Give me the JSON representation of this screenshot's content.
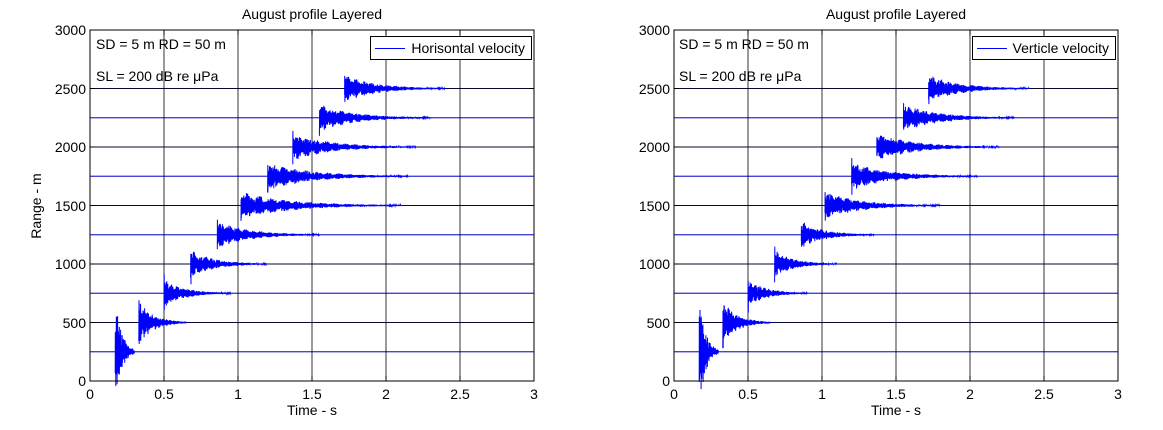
{
  "chart_data": [
    {
      "type": "line",
      "title": "August profile Layered",
      "xlabel": "Time - s",
      "ylabel": "Range - m",
      "xlim": [
        0,
        3
      ],
      "ylim": [
        0,
        3000
      ],
      "xticks": [
        "0",
        "0.5",
        "1",
        "1.5",
        "2",
        "2.5",
        "3"
      ],
      "yticks": [
        "0",
        "500",
        "1000",
        "1500",
        "2000",
        "2500",
        "3000"
      ],
      "grid": true,
      "legend_position": "top-right",
      "annotations": [
        "SD = 5 m  RD = 50 m",
        "SL = 200 dB re μPa"
      ],
      "series": [
        {
          "name": "Horisontal velocity",
          "color": "#0000ff"
        }
      ],
      "traces": [
        {
          "range": 250,
          "start": 0.17,
          "end": 0.3
        },
        {
          "range": 500,
          "start": 0.33,
          "end": 0.65
        },
        {
          "range": 750,
          "start": 0.5,
          "end": 0.95
        },
        {
          "range": 1000,
          "start": 0.68,
          "end": 1.2
        },
        {
          "range": 1250,
          "start": 0.86,
          "end": 1.55
        },
        {
          "range": 1500,
          "start": 1.02,
          "end": 2.1
        },
        {
          "range": 1750,
          "start": 1.2,
          "end": 2.15
        },
        {
          "range": 2000,
          "start": 1.37,
          "end": 2.2
        },
        {
          "range": 2250,
          "start": 1.55,
          "end": 2.3
        },
        {
          "range": 2500,
          "start": 1.72,
          "end": 2.4
        }
      ]
    },
    {
      "type": "line",
      "title": "August profile Layered",
      "xlabel": "Time - s",
      "ylabel": "",
      "xlim": [
        0,
        3
      ],
      "ylim": [
        0,
        3000
      ],
      "xticks": [
        "0",
        "0.5",
        "1",
        "1.5",
        "2",
        "2.5",
        "3"
      ],
      "yticks": [
        "0",
        "500",
        "1000",
        "1500",
        "2000",
        "2500",
        "3000"
      ],
      "grid": true,
      "legend_position": "top-right",
      "annotations": [
        "SD = 5 m  RD = 50 m",
        "SL = 200 dB re μPa"
      ],
      "series": [
        {
          "name": "Verticle velocity",
          "color": "#0000ff"
        }
      ],
      "traces": [
        {
          "range": 250,
          "start": 0.17,
          "end": 0.3
        },
        {
          "range": 500,
          "start": 0.33,
          "end": 0.65
        },
        {
          "range": 750,
          "start": 0.5,
          "end": 0.9
        },
        {
          "range": 1000,
          "start": 0.68,
          "end": 1.1
        },
        {
          "range": 1250,
          "start": 0.86,
          "end": 1.35
        },
        {
          "range": 1500,
          "start": 1.02,
          "end": 1.8
        },
        {
          "range": 1750,
          "start": 1.2,
          "end": 2.05
        },
        {
          "range": 2000,
          "start": 1.37,
          "end": 2.2
        },
        {
          "range": 2250,
          "start": 1.55,
          "end": 2.3
        },
        {
          "range": 2500,
          "start": 1.72,
          "end": 2.4
        }
      ]
    }
  ]
}
